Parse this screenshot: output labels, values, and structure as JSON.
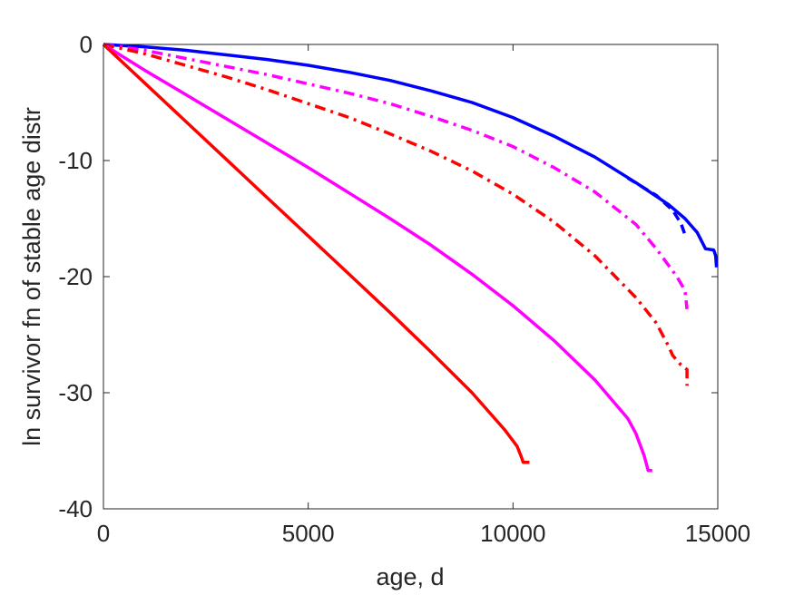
{
  "chart_data": {
    "type": "line",
    "title": "",
    "xlabel": "age, d",
    "ylabel": "ln survivor fn of stable age distr",
    "xlim": [
      0,
      15000
    ],
    "ylim": [
      -40,
      0
    ],
    "xticks": [
      0,
      5000,
      10000,
      15000
    ],
    "yticks": [
      0,
      -10,
      -20,
      -30,
      -40
    ],
    "grid": false,
    "legend": "none",
    "series": [
      {
        "color": "#0000ff",
        "style": "solid",
        "points": [
          [
            0,
            0
          ],
          [
            1000,
            -0.2
          ],
          [
            2000,
            -0.5
          ],
          [
            3000,
            -0.9
          ],
          [
            4000,
            -1.3
          ],
          [
            5000,
            -1.8
          ],
          [
            6000,
            -2.4
          ],
          [
            7000,
            -3.1
          ],
          [
            8000,
            -4.0
          ],
          [
            9000,
            -5.0
          ],
          [
            10000,
            -6.3
          ],
          [
            11000,
            -7.9
          ],
          [
            12000,
            -9.7
          ],
          [
            13000,
            -11.9
          ],
          [
            13800,
            -13.8
          ],
          [
            14200,
            -15.0
          ],
          [
            14500,
            -16.2
          ],
          [
            14700,
            -17.6
          ],
          [
            14900,
            -17.7
          ],
          [
            14950,
            -18.2
          ],
          [
            14970,
            -19.2
          ]
        ]
      },
      {
        "color": "#0000ff",
        "style": "dashed",
        "points": [
          [
            12800,
            -11.5
          ],
          [
            13500,
            -13.0
          ],
          [
            13900,
            -14.3
          ],
          [
            14100,
            -15.4
          ],
          [
            14200,
            -16.4
          ],
          [
            14250,
            -16.6
          ]
        ]
      },
      {
        "color": "#ff00ff",
        "style": "dashdot",
        "points": [
          [
            0,
            0
          ],
          [
            1000,
            -0.5
          ],
          [
            2000,
            -1.2
          ],
          [
            3000,
            -1.9
          ],
          [
            4000,
            -2.6
          ],
          [
            5000,
            -3.4
          ],
          [
            6000,
            -4.2
          ],
          [
            7000,
            -5.1
          ],
          [
            8000,
            -6.2
          ],
          [
            9000,
            -7.4
          ],
          [
            10000,
            -8.8
          ],
          [
            11000,
            -10.6
          ],
          [
            12000,
            -12.7
          ],
          [
            13000,
            -15.5
          ],
          [
            13500,
            -17.6
          ],
          [
            14000,
            -20.0
          ],
          [
            14200,
            -21.2
          ],
          [
            14250,
            -22.8
          ]
        ]
      },
      {
        "color": "#ff0000",
        "style": "dashdot",
        "points": [
          [
            0,
            0
          ],
          [
            1000,
            -0.8
          ],
          [
            2000,
            -1.8
          ],
          [
            3000,
            -2.8
          ],
          [
            4000,
            -3.9
          ],
          [
            5000,
            -5.1
          ],
          [
            6000,
            -6.3
          ],
          [
            7000,
            -7.7
          ],
          [
            8000,
            -9.2
          ],
          [
            9000,
            -10.9
          ],
          [
            10000,
            -12.9
          ],
          [
            11000,
            -15.3
          ],
          [
            12000,
            -18.2
          ],
          [
            13000,
            -21.8
          ],
          [
            13500,
            -24.0
          ],
          [
            13800,
            -26.0
          ],
          [
            13900,
            -26.8
          ],
          [
            14100,
            -27.6
          ],
          [
            14250,
            -28.0
          ],
          [
            14250,
            -29.4
          ]
        ]
      },
      {
        "color": "#ff00ff",
        "style": "solid",
        "points": [
          [
            0,
            0
          ],
          [
            1000,
            -2.2
          ],
          [
            2000,
            -4.3
          ],
          [
            3000,
            -6.4
          ],
          [
            4000,
            -8.5
          ],
          [
            5000,
            -10.6
          ],
          [
            6000,
            -12.8
          ],
          [
            7000,
            -15.0
          ],
          [
            8000,
            -17.3
          ],
          [
            9000,
            -19.8
          ],
          [
            10000,
            -22.5
          ],
          [
            11000,
            -25.5
          ],
          [
            12000,
            -28.9
          ],
          [
            12800,
            -32.2
          ],
          [
            13000,
            -33.5
          ],
          [
            13200,
            -35.4
          ],
          [
            13300,
            -36.7
          ],
          [
            13400,
            -36.7
          ]
        ]
      },
      {
        "color": "#ff0000",
        "style": "solid",
        "points": [
          [
            0,
            0
          ],
          [
            1000,
            -3.3
          ],
          [
            2000,
            -6.6
          ],
          [
            3000,
            -9.9
          ],
          [
            4000,
            -13.2
          ],
          [
            5000,
            -16.5
          ],
          [
            6000,
            -19.8
          ],
          [
            7000,
            -23.1
          ],
          [
            8000,
            -26.5
          ],
          [
            9000,
            -30.0
          ],
          [
            9800,
            -33.2
          ],
          [
            10100,
            -34.6
          ],
          [
            10200,
            -35.5
          ],
          [
            10250,
            -36.0
          ],
          [
            10400,
            -36.0
          ]
        ]
      }
    ]
  }
}
